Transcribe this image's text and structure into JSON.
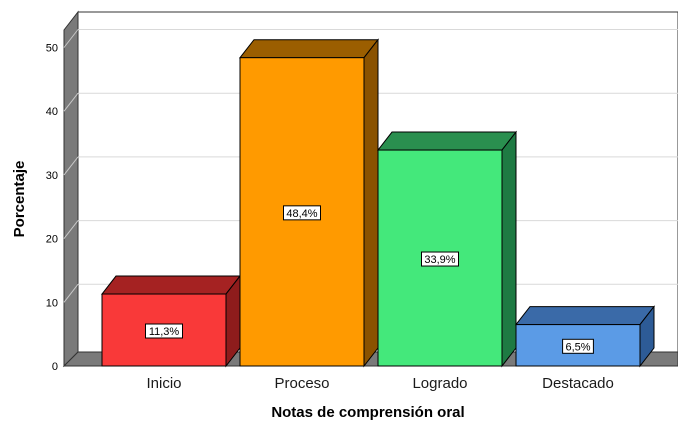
{
  "chart_data": {
    "type": "bar",
    "xlabel": "Notas de comprensión oral",
    "ylabel": "Porcentaje",
    "ylim": [
      0,
      50
    ],
    "yticks": [
      "0",
      "10",
      "20",
      "30",
      "40",
      "50"
    ],
    "categories": [
      "Inicio",
      "Proceso",
      "Logrado",
      "Destacado"
    ],
    "values": [
      11.3,
      48.4,
      33.9,
      6.5
    ],
    "data_labels": [
      "11,3%",
      "48,4%",
      "33,9%",
      "6,5%"
    ],
    "colors": [
      "#f93939",
      "#ff9a00",
      "#44e87b",
      "#5b9be6"
    ],
    "side_colors": [
      "#8e1c1c",
      "#8a5200",
      "#1e7a43",
      "#2d5b96"
    ],
    "top_colors": [
      "#a52222",
      "#9b5e00",
      "#2a8f4f",
      "#3a6aa8"
    ],
    "grid": true,
    "legend": "none"
  }
}
